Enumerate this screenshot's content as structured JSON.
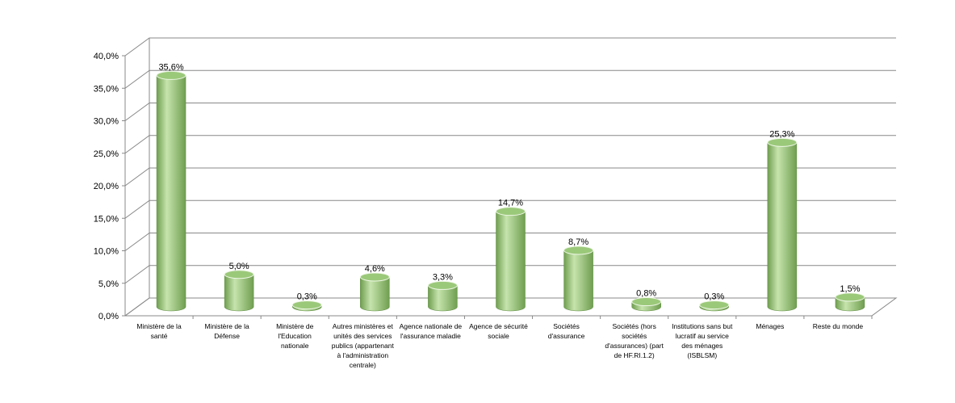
{
  "chart_data": {
    "type": "bar",
    "categories": [
      "Ministère de la santé",
      "Ministère de la Défense",
      "Ministère de l'Education nationale",
      "Autres ministères et unités des services publics (appartenant à l'administration centrale)",
      "Agence nationale de l'assurance maladie",
      "Agence de sécurité sociale",
      "Sociétés d'assurance",
      "Sociétés (hors sociétés d'assurances) (part de HF.RI.1.2)",
      "Institutions sans but lucratif au service des ménages (ISBLSM)",
      "Ménages",
      "Reste du monde"
    ],
    "values": [
      35.6,
      5.0,
      0.3,
      4.6,
      3.3,
      14.7,
      8.7,
      0.8,
      0.3,
      25.3,
      1.5
    ],
    "value_labels": [
      "35,6%",
      "5,0%",
      "0,3%",
      "4,6%",
      "3,3%",
      "14,7%",
      "8,7%",
      "0,8%",
      "0,3%",
      "25,3%",
      "1,5%"
    ],
    "color": "#9bc97a",
    "ylim": [
      0,
      40
    ],
    "yticks": [
      {
        "value": 0,
        "label": "0,0%"
      },
      {
        "value": 5,
        "label": "5,0%"
      },
      {
        "value": 10,
        "label": "10,0%"
      },
      {
        "value": 15,
        "label": "15,0%"
      },
      {
        "value": 20,
        "label": "20,0%"
      },
      {
        "value": 25,
        "label": "25,0%"
      },
      {
        "value": 30,
        "label": "30,0%"
      },
      {
        "value": 35,
        "label": "35,0%"
      },
      {
        "value": 40,
        "label": "40,0%"
      }
    ],
    "grid": true
  }
}
